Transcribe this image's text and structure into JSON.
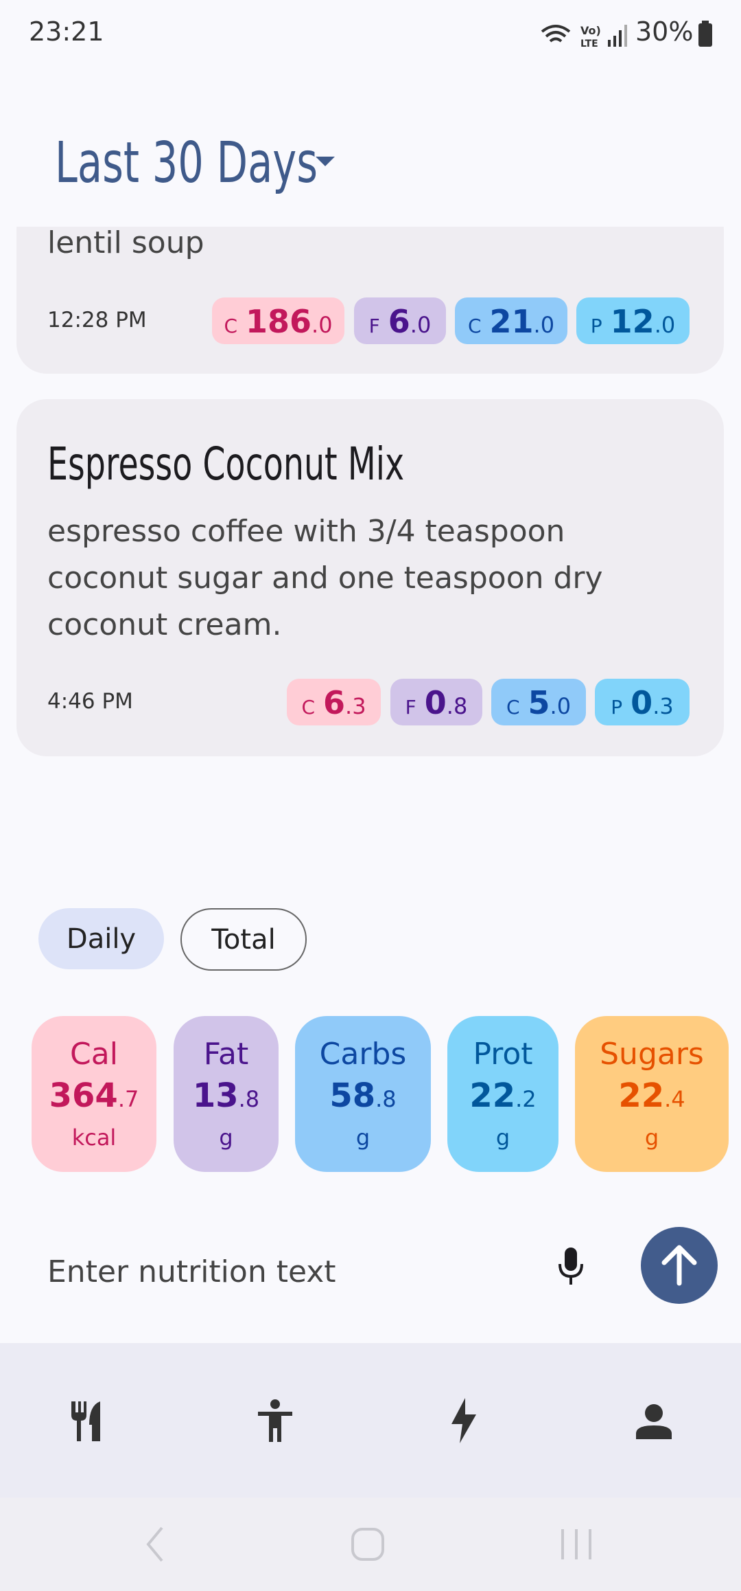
{
  "status_bar": {
    "time": "23:21",
    "battery": "30%"
  },
  "header": {
    "title": "Last 30 Days"
  },
  "entries": [
    {
      "description": "lentil soup",
      "time": "12:28 PM",
      "badges": [
        {
          "label": "C",
          "int": "186",
          "dec": ".0"
        },
        {
          "label": "F",
          "int": "6",
          "dec": ".0"
        },
        {
          "label": "C",
          "int": "21",
          "dec": ".0"
        },
        {
          "label": "P",
          "int": "12",
          "dec": ".0"
        }
      ]
    },
    {
      "title": "Espresso Coconut Mix",
      "description": "espresso coffee with 3/4 teaspoon coconut sugar and one teaspoon dry coconut cream.",
      "time": "4:46 PM",
      "badges": [
        {
          "label": "C",
          "int": "6",
          "dec": ".3"
        },
        {
          "label": "F",
          "int": "0",
          "dec": ".8"
        },
        {
          "label": "C",
          "int": "5",
          "dec": ".0"
        },
        {
          "label": "P",
          "int": "0",
          "dec": ".3"
        }
      ]
    }
  ],
  "toggle": [
    "Daily",
    "Total"
  ],
  "summary": [
    {
      "name": "Cal",
      "int": "364",
      "dec": ".7",
      "unit": "kcal"
    },
    {
      "name": "Fat",
      "int": "13",
      "dec": ".8",
      "unit": "g"
    },
    {
      "name": "Carbs",
      "int": "58",
      "dec": ".8",
      "unit": "g"
    },
    {
      "name": "Prot",
      "int": "22",
      "dec": ".2",
      "unit": "g"
    },
    {
      "name": "Sugars",
      "int": "22",
      "dec": ".4",
      "unit": "g"
    }
  ],
  "input": {
    "placeholder": "Enter nutrition text"
  }
}
